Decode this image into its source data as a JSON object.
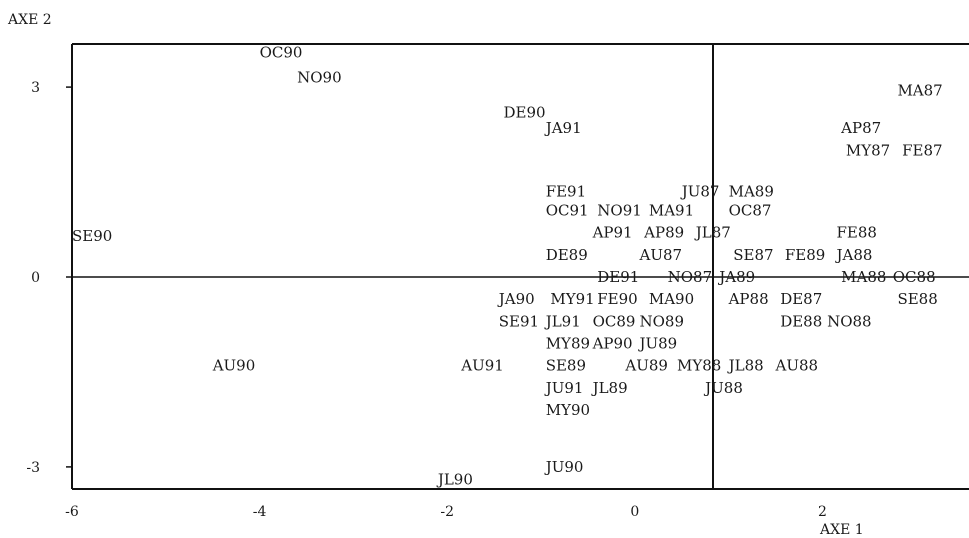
{
  "chart_data": {
    "type": "scatter",
    "ylabel": "AXE 2",
    "xlabel": "AXE 1",
    "xlim": [
      -6,
      3.6
    ],
    "ylim": [
      -3.25,
      3.65
    ],
    "xticks": [
      {
        "v": -6,
        "label": "-6"
      },
      {
        "v": -4,
        "label": "-4"
      },
      {
        "v": -2,
        "label": "-2"
      },
      {
        "v": 0,
        "label": "0"
      },
      {
        "v": 2,
        "label": "2"
      }
    ],
    "yticks": [
      {
        "v": 3,
        "label": "3"
      },
      {
        "v": 0,
        "label": "0"
      },
      {
        "v": -3,
        "label": "-3"
      }
    ],
    "points": [
      {
        "label": "OC90",
        "x": -4.0,
        "y": 3.55
      },
      {
        "label": "NO90",
        "x": -3.6,
        "y": 3.15
      },
      {
        "label": "MA87",
        "x": 2.8,
        "y": 2.95
      },
      {
        "label": "DE90",
        "x": -1.4,
        "y": 2.6
      },
      {
        "label": "JA91",
        "x": -0.95,
        "y": 2.35
      },
      {
        "label": "AP87",
        "x": 2.2,
        "y": 2.35
      },
      {
        "label": "MY87",
        "x": 2.25,
        "y": 2.0
      },
      {
        "label": "FE87",
        "x": 2.85,
        "y": 2.0
      },
      {
        "label": "FE91",
        "x": -0.95,
        "y": 1.35
      },
      {
        "label": "JU87",
        "x": 0.5,
        "y": 1.35
      },
      {
        "label": "MA89",
        "x": 1.0,
        "y": 1.35
      },
      {
        "label": "OC91",
        "x": -0.95,
        "y": 1.05
      },
      {
        "label": "NO91",
        "x": -0.4,
        "y": 1.05
      },
      {
        "label": "MA91",
        "x": 0.15,
        "y": 1.05
      },
      {
        "label": "OC87",
        "x": 1.0,
        "y": 1.05
      },
      {
        "label": "SE90",
        "x": -6.0,
        "y": 0.65
      },
      {
        "label": "AP91",
        "x": -0.45,
        "y": 0.7
      },
      {
        "label": "AP89",
        "x": 0.1,
        "y": 0.7
      },
      {
        "label": "JL87",
        "x": 0.65,
        "y": 0.7
      },
      {
        "label": "FE88",
        "x": 2.15,
        "y": 0.7
      },
      {
        "label": "DE89",
        "x": -0.95,
        "y": 0.35
      },
      {
        "label": "AU87",
        "x": 0.05,
        "y": 0.35
      },
      {
        "label": "SE87",
        "x": 1.05,
        "y": 0.35
      },
      {
        "label": "FE89",
        "x": 1.6,
        "y": 0.35
      },
      {
        "label": "JA88",
        "x": 2.15,
        "y": 0.35
      },
      {
        "label": "DE91",
        "x": -0.4,
        "y": 0.0
      },
      {
        "label": "NO87",
        "x": 0.35,
        "y": 0.0
      },
      {
        "label": "JA89",
        "x": 0.9,
        "y": 0.0
      },
      {
        "label": "MA88",
        "x": 2.2,
        "y": 0.0
      },
      {
        "label": "OC88",
        "x": 2.75,
        "y": 0.0
      },
      {
        "label": "JA90",
        "x": -1.45,
        "y": -0.35
      },
      {
        "label": "MY91",
        "x": -0.9,
        "y": -0.35
      },
      {
        "label": "FE90",
        "x": -0.4,
        "y": -0.35
      },
      {
        "label": "MA90",
        "x": 0.15,
        "y": -0.35
      },
      {
        "label": "AP88",
        "x": 1.0,
        "y": -0.35
      },
      {
        "label": "DE87",
        "x": 1.55,
        "y": -0.35
      },
      {
        "label": "SE88",
        "x": 2.8,
        "y": -0.35
      },
      {
        "label": "SE91",
        "x": -1.45,
        "y": -0.7
      },
      {
        "label": "JL91",
        "x": -0.95,
        "y": -0.7
      },
      {
        "label": "OC89",
        "x": -0.45,
        "y": -0.7
      },
      {
        "label": "NO89",
        "x": 0.05,
        "y": -0.7
      },
      {
        "label": "DE88",
        "x": 1.55,
        "y": -0.7
      },
      {
        "label": "NO88",
        "x": 2.05,
        "y": -0.7
      },
      {
        "label": "MY89",
        "x": -0.95,
        "y": -1.05
      },
      {
        "label": "AP90",
        "x": -0.45,
        "y": -1.05
      },
      {
        "label": "JU89",
        "x": 0.05,
        "y": -1.05
      },
      {
        "label": "AU90",
        "x": -4.5,
        "y": -1.4
      },
      {
        "label": "AU91",
        "x": -1.85,
        "y": -1.4
      },
      {
        "label": "SE89",
        "x": -0.95,
        "y": -1.4
      },
      {
        "label": "AU89",
        "x": -0.1,
        "y": -1.4
      },
      {
        "label": "MY88",
        "x": 0.45,
        "y": -1.4
      },
      {
        "label": "JL88",
        "x": 1.0,
        "y": -1.4
      },
      {
        "label": "AU88",
        "x": 1.5,
        "y": -1.4
      },
      {
        "label": "JU91",
        "x": -0.95,
        "y": -1.75
      },
      {
        "label": "JL89",
        "x": -0.45,
        "y": -1.75
      },
      {
        "label": "JU88",
        "x": 0.75,
        "y": -1.75
      },
      {
        "label": "MY90",
        "x": -0.95,
        "y": -2.1
      },
      {
        "label": "JU90",
        "x": -0.95,
        "y": -3.0
      },
      {
        "label": "JL90",
        "x": -2.1,
        "y": -3.2
      }
    ]
  }
}
